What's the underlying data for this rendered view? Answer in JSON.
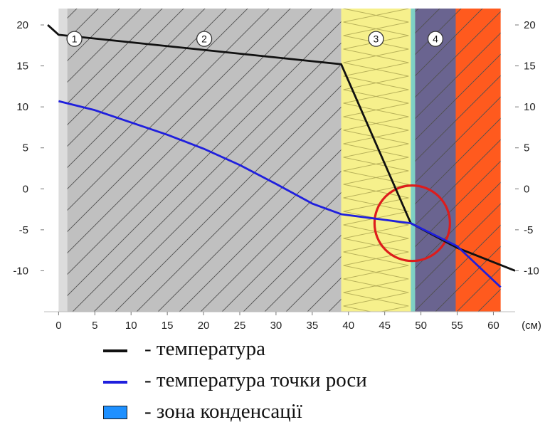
{
  "chart_data": {
    "type": "line",
    "xlim": [
      -2,
      63
    ],
    "ylim": [
      -15,
      22
    ],
    "x_unit": "(см)",
    "x_ticks": [
      0,
      5,
      10,
      15,
      20,
      25,
      30,
      35,
      40,
      45,
      50,
      55,
      60
    ],
    "y_ticks": [
      20,
      15,
      10,
      5,
      0,
      -5,
      -10
    ],
    "layers": [
      {
        "label": "1",
        "x_start": 0,
        "x_end": 1.2,
        "color": "#dcdcdc",
        "hatched": false
      },
      {
        "label": "2",
        "x_start": 1.2,
        "x_end": 39,
        "color": "#c0c0c0",
        "hatched": true
      },
      {
        "label": "3",
        "x_start": 39,
        "x_end": 48.6,
        "color": "#f6f08c",
        "hatched": false
      },
      {
        "label": "",
        "x_start": 48.6,
        "x_end": 49.2,
        "color": "#7ed0c4",
        "hatched": false
      },
      {
        "label": "4",
        "x_start": 49.2,
        "x_end": 54.8,
        "color": "#6a6490",
        "hatched": true
      },
      {
        "label": "",
        "x_start": 54.8,
        "x_end": 61,
        "color": "#ff5a1e",
        "hatched": true
      }
    ],
    "layer_label_y": 18.3,
    "series": [
      {
        "color": "#111111",
        "x": [
          -1.5,
          0,
          39,
          48.6,
          55,
          63
        ],
        "y": [
          20,
          18.8,
          15.2,
          -4.2,
          -7.2,
          -10
        ]
      },
      {
        "color": "#1f1fdd",
        "x": [
          0,
          5,
          10,
          15,
          20,
          25,
          30,
          35,
          39,
          48.6,
          55,
          61
        ],
        "y": [
          10.7,
          9.6,
          8.1,
          6.6,
          4.9,
          2.9,
          0.6,
          -1.8,
          -3.1,
          -4.2,
          -7.0,
          -12
        ]
      }
    ],
    "highlight_circle": {
      "cx": 48.8,
      "cy": -4.2,
      "color": "#dd1c1c"
    }
  },
  "legend": {
    "items": [
      {
        "text": "- температура",
        "color": "#111111",
        "kind": "line"
      },
      {
        "text": "- температура точки роси",
        "color": "#1f1fdd",
        "kind": "line"
      },
      {
        "text": "- зона конденсації",
        "color": "#1e90ff",
        "kind": "box"
      }
    ]
  }
}
